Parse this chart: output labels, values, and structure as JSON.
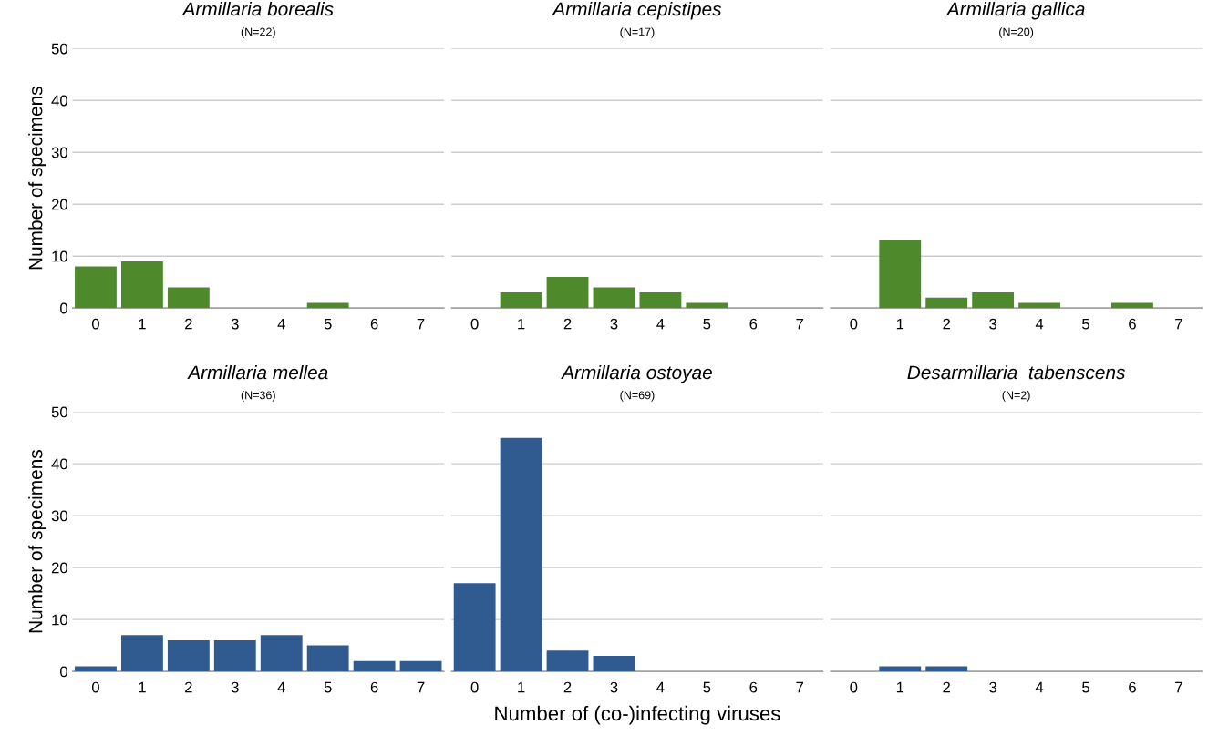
{
  "chart_data": [
    {
      "type": "bar",
      "title": "Armillaria borealis",
      "subtitle": "(N=22)",
      "ylabel": "Number of specimens",
      "categories": [
        "0",
        "1",
        "2",
        "3",
        "4",
        "5",
        "6",
        "7"
      ],
      "values": [
        8,
        9,
        4,
        0,
        0,
        1,
        0,
        0
      ],
      "color": "#4e8a2c",
      "ylim": [
        0,
        50
      ],
      "yticks": [
        0,
        10,
        20,
        30,
        40,
        50
      ],
      "grid": "y"
    },
    {
      "type": "bar",
      "title": "Armillaria cepistipes",
      "subtitle": "(N=17)",
      "categories": [
        "0",
        "1",
        "2",
        "3",
        "4",
        "5",
        "6",
        "7"
      ],
      "values": [
        0,
        3,
        6,
        4,
        3,
        1,
        0,
        0
      ],
      "color": "#4e8a2c",
      "ylim": [
        0,
        50
      ],
      "yticks": [
        0,
        10,
        20,
        30,
        40,
        50
      ],
      "grid": "y",
      "tick_labels": "x"
    },
    {
      "type": "bar",
      "title": "Armillaria gallica",
      "subtitle": "(N=20)",
      "categories": [
        "0",
        "1",
        "2",
        "3",
        "4",
        "5",
        "6",
        "7"
      ],
      "values": [
        0,
        13,
        2,
        3,
        1,
        0,
        1,
        0
      ],
      "color": "#4e8a2c",
      "ylim": [
        0,
        50
      ],
      "yticks": [
        0,
        10,
        20,
        30,
        40,
        50
      ],
      "grid": "y",
      "tick_labels": "x"
    },
    {
      "type": "bar",
      "title": "Armillaria mellea",
      "subtitle": "(N=36)",
      "ylabel": "Number of specimens",
      "categories": [
        "0",
        "1",
        "2",
        "3",
        "4",
        "5",
        "6",
        "7"
      ],
      "values": [
        1,
        7,
        6,
        6,
        7,
        5,
        2,
        2
      ],
      "color": "#2f5b90",
      "ylim": [
        0,
        50
      ],
      "yticks": [
        0,
        10,
        20,
        30,
        40,
        50
      ],
      "grid": "y"
    },
    {
      "type": "bar",
      "title": "Armillaria ostoyae",
      "subtitle": "(N=69)",
      "xlabel": "Number of (co-)infecting viruses",
      "categories": [
        "0",
        "1",
        "2",
        "3",
        "4",
        "5",
        "6",
        "7"
      ],
      "values": [
        17,
        45,
        4,
        3,
        0,
        0,
        0,
        0
      ],
      "color": "#2f5b90",
      "ylim": [
        0,
        50
      ],
      "yticks": [
        0,
        10,
        20,
        30,
        40,
        50
      ],
      "grid": "y",
      "tick_labels": "x"
    },
    {
      "type": "bar",
      "title": "Desarmillaria  tabenscens",
      "subtitle": "(N=2)",
      "categories": [
        "0",
        "1",
        "2",
        "3",
        "4",
        "5",
        "6",
        "7"
      ],
      "values": [
        0,
        1,
        1,
        0,
        0,
        0,
        0,
        0
      ],
      "color": "#2f5b90",
      "ylim": [
        0,
        50
      ],
      "yticks": [
        0,
        10,
        20,
        30,
        40,
        50
      ],
      "grid": "y",
      "tick_labels": "x"
    }
  ]
}
